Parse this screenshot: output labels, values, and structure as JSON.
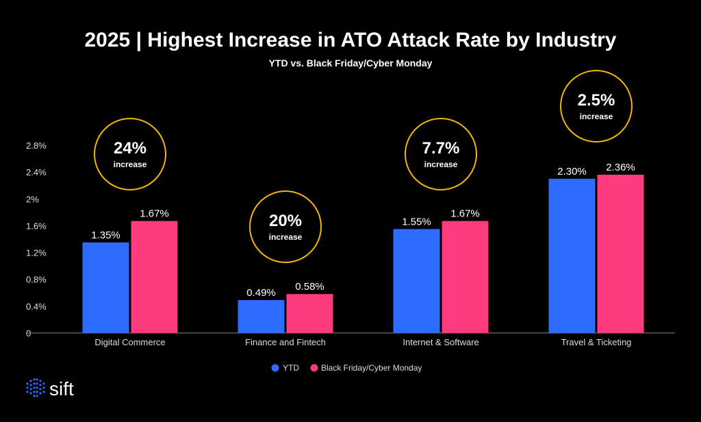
{
  "chart_data": {
    "type": "bar",
    "title": "2025 | Highest Increase in ATO Attack Rate by Industry",
    "subtitle": "YTD vs. Black Friday/Cyber Monday",
    "categories": [
      "Digital Commerce",
      "Finance and Fintech",
      "Internet & Software",
      "Travel & Ticketing"
    ],
    "series": [
      {
        "name": "YTD",
        "values": [
          1.35,
          0.49,
          1.55,
          2.3
        ],
        "labels": [
          "1.35%",
          "0.49%",
          "1.55%",
          "2.30%"
        ],
        "color": "#2f6bff"
      },
      {
        "name": "Black Friday/Cyber Monday",
        "values": [
          1.67,
          0.58,
          1.67,
          2.36
        ],
        "labels": [
          "1.67%",
          "0.58%",
          "1.67%",
          "2.36%"
        ],
        "color": "#ff3a7f"
      }
    ],
    "annotations": [
      {
        "value": "24%",
        "text": "increase"
      },
      {
        "value": "20%",
        "text": "increase"
      },
      {
        "value": "7.7%",
        "text": "increase"
      },
      {
        "value": "2.5%",
        "text": "increase"
      }
    ],
    "annotation_color": "#f2b705",
    "yticks": [
      "0",
      "0.4%",
      "0.8%",
      "1.2%",
      "1.6%",
      "2%",
      "2.4%",
      "2.8%"
    ],
    "ytick_values": [
      0,
      0.4,
      0.8,
      1.2,
      1.6,
      2.0,
      2.4,
      2.8
    ],
    "ylim": [
      0,
      2.8
    ],
    "grid": false,
    "legend_placement": "bottom-center"
  },
  "logo": {
    "text": "sift",
    "dot_color": "#2f6bff"
  }
}
